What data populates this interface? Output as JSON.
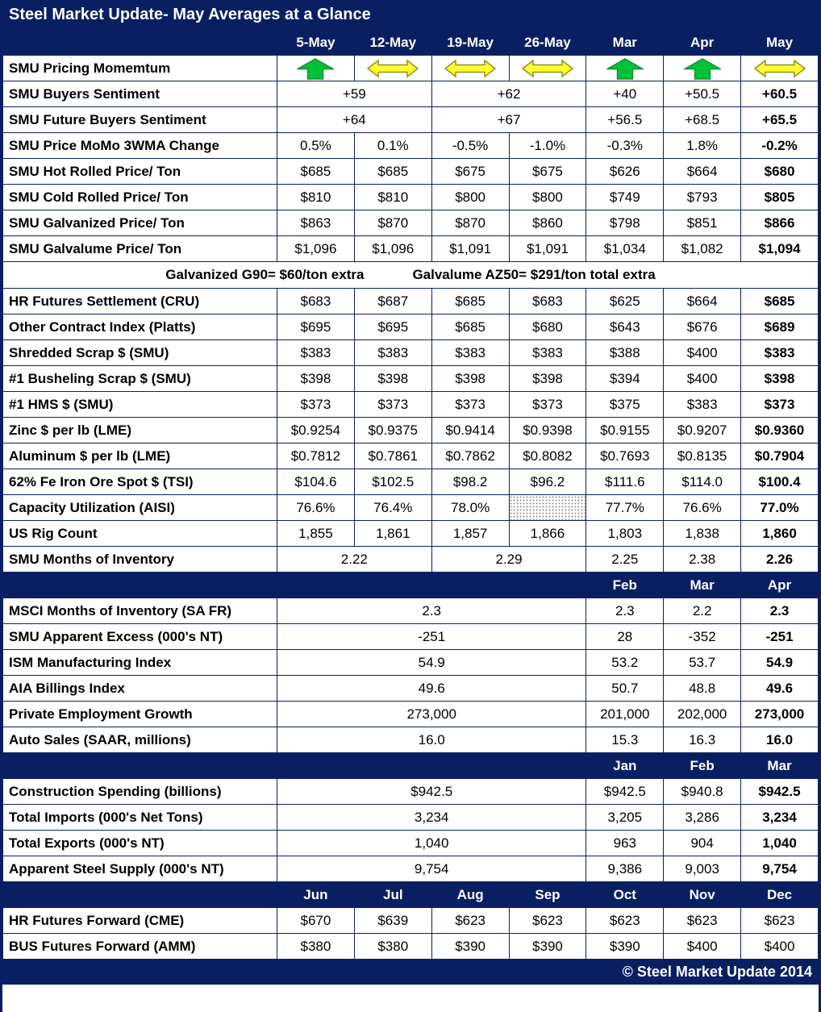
{
  "colors": {
    "navy": "#0a1f62",
    "green": "#00c23a",
    "green_dark": "#12922c",
    "yellow": "#ffff2e",
    "yellow_dark": "#8f8f23"
  },
  "chart_data": {
    "type": "table",
    "title": "Steel Market Update- May Averages at a Glance",
    "footer": "© Steel Market Update 2014",
    "rows": [
      {
        "type": "section",
        "cells": [
          {
            "text": "",
            "span": 1
          },
          {
            "text": "5-May"
          },
          {
            "text": "12-May"
          },
          {
            "text": "19-May"
          },
          {
            "text": "26-May"
          },
          {
            "text": "Mar"
          },
          {
            "text": "Apr"
          },
          {
            "text": "May"
          }
        ]
      },
      {
        "type": "icons",
        "label": "SMU Pricing Momemtum",
        "cells": [
          {
            "icon": "up-arrow"
          },
          {
            "icon": "left-right-arrow"
          },
          {
            "icon": "left-right-arrow"
          },
          {
            "icon": "left-right-arrow"
          },
          {
            "icon": "up-arrow"
          },
          {
            "icon": "up-arrow"
          },
          {
            "icon": "left-right-arrow"
          }
        ]
      },
      {
        "type": "data",
        "label": "SMU Buyers Sentiment",
        "cells": [
          {
            "text": "+59",
            "span": 2
          },
          {
            "text": "+62",
            "span": 2
          },
          {
            "text": "+40"
          },
          {
            "text": "+50.5"
          },
          {
            "text": "+60.5",
            "bold": true
          }
        ]
      },
      {
        "type": "data",
        "label": "SMU Future Buyers Sentiment",
        "cells": [
          {
            "text": "+64",
            "span": 2
          },
          {
            "text": "+67",
            "span": 2
          },
          {
            "text": "+56.5"
          },
          {
            "text": "+68.5"
          },
          {
            "text": "+65.5",
            "bold": true
          }
        ]
      },
      {
        "type": "data",
        "label": "SMU Price MoMo 3WMA Change",
        "cells": [
          {
            "text": "0.5%"
          },
          {
            "text": "0.1%"
          },
          {
            "text": "-0.5%"
          },
          {
            "text": "-1.0%"
          },
          {
            "text": "-0.3%"
          },
          {
            "text": "1.8%"
          },
          {
            "text": "-0.2%",
            "bold": true
          }
        ]
      },
      {
        "type": "data",
        "label": "SMU Hot Rolled Price/ Ton",
        "cells": [
          {
            "text": "$685"
          },
          {
            "text": "$685"
          },
          {
            "text": "$675"
          },
          {
            "text": "$675"
          },
          {
            "text": "$626"
          },
          {
            "text": "$664"
          },
          {
            "text": "$680",
            "bold": true
          }
        ]
      },
      {
        "type": "data",
        "label": "SMU Cold Rolled Price/ Ton",
        "cells": [
          {
            "text": "$810"
          },
          {
            "text": "$810"
          },
          {
            "text": "$800"
          },
          {
            "text": "$800"
          },
          {
            "text": "$749"
          },
          {
            "text": "$793"
          },
          {
            "text": "$805",
            "bold": true
          }
        ]
      },
      {
        "type": "data",
        "label": "SMU Galvanized Price/ Ton",
        "cells": [
          {
            "text": "$863"
          },
          {
            "text": "$870"
          },
          {
            "text": "$870"
          },
          {
            "text": "$860"
          },
          {
            "text": "$798"
          },
          {
            "text": "$851"
          },
          {
            "text": "$866",
            "bold": true
          }
        ]
      },
      {
        "type": "data",
        "label": "SMU Galvalume Price/ Ton",
        "cells": [
          {
            "text": "$1,096"
          },
          {
            "text": "$1,096"
          },
          {
            "text": "$1,091"
          },
          {
            "text": "$1,091"
          },
          {
            "text": "$1,034"
          },
          {
            "text": "$1,082"
          },
          {
            "text": "$1,094",
            "bold": true
          }
        ]
      },
      {
        "type": "note",
        "segments": [
          "Galvanized G90= $60/ton extra",
          "Galvalume AZ50= $291/ton total extra"
        ]
      },
      {
        "type": "data",
        "label": "HR Futures Settlement (CRU)",
        "cells": [
          {
            "text": "$683"
          },
          {
            "text": "$687"
          },
          {
            "text": "$685"
          },
          {
            "text": "$683"
          },
          {
            "text": "$625"
          },
          {
            "text": "$664"
          },
          {
            "text": "$685",
            "bold": true
          }
        ]
      },
      {
        "type": "data",
        "label": "Other Contract Index (Platts)",
        "cells": [
          {
            "text": "$695"
          },
          {
            "text": "$695"
          },
          {
            "text": "$685"
          },
          {
            "text": "$680"
          },
          {
            "text": "$643"
          },
          {
            "text": "$676"
          },
          {
            "text": "$689",
            "bold": true
          }
        ]
      },
      {
        "type": "data",
        "label": "Shredded Scrap $ (SMU)",
        "cells": [
          {
            "text": "$383"
          },
          {
            "text": "$383"
          },
          {
            "text": "$383"
          },
          {
            "text": "$383"
          },
          {
            "text": "$388"
          },
          {
            "text": "$400"
          },
          {
            "text": "$383",
            "bold": true
          }
        ]
      },
      {
        "type": "data",
        "label": "#1 Busheling Scrap $ (SMU)",
        "cells": [
          {
            "text": "$398"
          },
          {
            "text": "$398"
          },
          {
            "text": "$398"
          },
          {
            "text": "$398"
          },
          {
            "text": "$394"
          },
          {
            "text": "$400"
          },
          {
            "text": "$398",
            "bold": true
          }
        ]
      },
      {
        "type": "data",
        "label": "#1 HMS $ (SMU)",
        "cells": [
          {
            "text": "$373"
          },
          {
            "text": "$373"
          },
          {
            "text": "$373"
          },
          {
            "text": "$373"
          },
          {
            "text": "$375"
          },
          {
            "text": "$383"
          },
          {
            "text": "$373",
            "bold": true
          }
        ]
      },
      {
        "type": "data",
        "label": "Zinc $ per lb (LME)",
        "cells": [
          {
            "text": "$0.9254"
          },
          {
            "text": "$0.9375"
          },
          {
            "text": "$0.9414"
          },
          {
            "text": "$0.9398"
          },
          {
            "text": "$0.9155"
          },
          {
            "text": "$0.9207"
          },
          {
            "text": "$0.9360",
            "bold": true
          }
        ]
      },
      {
        "type": "data",
        "label": "Aluminum $ per lb (LME)",
        "cells": [
          {
            "text": "$0.7812"
          },
          {
            "text": "$0.7861"
          },
          {
            "text": "$0.7862"
          },
          {
            "text": "$0.8082"
          },
          {
            "text": "$0.7693"
          },
          {
            "text": "$0.8135"
          },
          {
            "text": "$0.7904",
            "bold": true
          }
        ]
      },
      {
        "type": "data",
        "label": "62% Fe Iron Ore Spot $ (TSI)",
        "cells": [
          {
            "text": "$104.6"
          },
          {
            "text": "$102.5"
          },
          {
            "text": "$98.2"
          },
          {
            "text": "$96.2"
          },
          {
            "text": "$111.6"
          },
          {
            "text": "$114.0"
          },
          {
            "text": "$100.4",
            "bold": true
          }
        ]
      },
      {
        "type": "data",
        "label": "Capacity Utilization (AISI)",
        "cells": [
          {
            "text": "76.6%"
          },
          {
            "text": "76.4%"
          },
          {
            "text": "78.0%"
          },
          {
            "text": "",
            "hatched": true
          },
          {
            "text": "77.7%"
          },
          {
            "text": "76.6%"
          },
          {
            "text": "77.0%",
            "bold": true
          }
        ]
      },
      {
        "type": "data",
        "label": "US Rig Count",
        "cells": [
          {
            "text": "1,855"
          },
          {
            "text": "1,861"
          },
          {
            "text": "1,857"
          },
          {
            "text": "1,866"
          },
          {
            "text": "1,803"
          },
          {
            "text": "1,838"
          },
          {
            "text": "1,860",
            "bold": true
          }
        ]
      },
      {
        "type": "data",
        "label": "SMU Months of Inventory",
        "cells": [
          {
            "text": "2.22",
            "span": 2
          },
          {
            "text": "2.29",
            "span": 2
          },
          {
            "text": "2.25"
          },
          {
            "text": "2.38"
          },
          {
            "text": "2.26",
            "bold": true
          }
        ]
      },
      {
        "type": "section",
        "cells": [
          {
            "text": "",
            "span": 5
          },
          {
            "text": "Feb"
          },
          {
            "text": "Mar"
          },
          {
            "text": "Apr"
          }
        ]
      },
      {
        "type": "data",
        "label": "MSCI Months of Inventory (SA FR)",
        "cells": [
          {
            "text": "2.3",
            "span": 4
          },
          {
            "text": "2.3"
          },
          {
            "text": "2.2"
          },
          {
            "text": "2.3",
            "bold": true
          }
        ]
      },
      {
        "type": "data",
        "label": "SMU Apparent Excess (000's NT)",
        "cells": [
          {
            "text": "-251",
            "span": 4
          },
          {
            "text": "28"
          },
          {
            "text": "-352"
          },
          {
            "text": "-251",
            "bold": true
          }
        ]
      },
      {
        "type": "data",
        "label": "ISM Manufacturing Index",
        "cells": [
          {
            "text": "54.9",
            "span": 4
          },
          {
            "text": "53.2"
          },
          {
            "text": "53.7"
          },
          {
            "text": "54.9",
            "bold": true
          }
        ]
      },
      {
        "type": "data",
        "label": "AIA Billings Index",
        "cells": [
          {
            "text": "49.6",
            "span": 4
          },
          {
            "text": "50.7"
          },
          {
            "text": "48.8"
          },
          {
            "text": "49.6",
            "bold": true
          }
        ]
      },
      {
        "type": "data",
        "label": "Private Employment Growth",
        "cells": [
          {
            "text": "273,000",
            "span": 4
          },
          {
            "text": "201,000"
          },
          {
            "text": "202,000"
          },
          {
            "text": "273,000",
            "bold": true
          }
        ]
      },
      {
        "type": "data",
        "label": "Auto Sales (SAAR, millions)",
        "cells": [
          {
            "text": "16.0",
            "span": 4
          },
          {
            "text": "15.3"
          },
          {
            "text": "16.3"
          },
          {
            "text": "16.0",
            "bold": true
          }
        ]
      },
      {
        "type": "section",
        "cells": [
          {
            "text": "",
            "span": 5
          },
          {
            "text": "Jan"
          },
          {
            "text": "Feb"
          },
          {
            "text": "Mar"
          }
        ]
      },
      {
        "type": "data",
        "label": "Construction Spending (billions)",
        "cells": [
          {
            "text": "$942.5",
            "span": 4
          },
          {
            "text": "$942.5"
          },
          {
            "text": "$940.8"
          },
          {
            "text": "$942.5",
            "bold": true
          }
        ]
      },
      {
        "type": "data",
        "label": "Total Imports (000's Net Tons)",
        "cells": [
          {
            "text": "3,234",
            "span": 4
          },
          {
            "text": "3,205"
          },
          {
            "text": "3,286"
          },
          {
            "text": "3,234",
            "bold": true
          }
        ]
      },
      {
        "type": "data",
        "label": "Total Exports (000's NT)",
        "cells": [
          {
            "text": "1,040",
            "span": 4
          },
          {
            "text": "963"
          },
          {
            "text": "904"
          },
          {
            "text": "1,040",
            "bold": true
          }
        ]
      },
      {
        "type": "data",
        "label": "Apparent Steel Supply (000's NT)",
        "cells": [
          {
            "text": "9,754",
            "span": 4
          },
          {
            "text": "9,386"
          },
          {
            "text": "9,003"
          },
          {
            "text": "9,754",
            "bold": true
          }
        ]
      },
      {
        "type": "section",
        "cells": [
          {
            "text": "",
            "span": 1
          },
          {
            "text": "Jun"
          },
          {
            "text": "Jul"
          },
          {
            "text": "Aug"
          },
          {
            "text": "Sep"
          },
          {
            "text": "Oct"
          },
          {
            "text": "Nov"
          },
          {
            "text": "Dec"
          }
        ]
      },
      {
        "type": "data",
        "label": "HR Futures Forward (CME)",
        "cells": [
          {
            "text": "$670"
          },
          {
            "text": "$639"
          },
          {
            "text": "$623"
          },
          {
            "text": "$623"
          },
          {
            "text": "$623"
          },
          {
            "text": "$623"
          },
          {
            "text": "$623"
          }
        ]
      },
      {
        "type": "data",
        "label": "BUS Futures Forward (AMM)",
        "cells": [
          {
            "text": "$380"
          },
          {
            "text": "$380"
          },
          {
            "text": "$390"
          },
          {
            "text": "$390"
          },
          {
            "text": "$390"
          },
          {
            "text": "$400"
          },
          {
            "text": "$400"
          }
        ]
      }
    ],
    "icon_legend": {
      "up-arrow": "green up block arrow (rising momentum)",
      "left-right-arrow": "yellow sideways block arrow (flat momentum)"
    }
  }
}
